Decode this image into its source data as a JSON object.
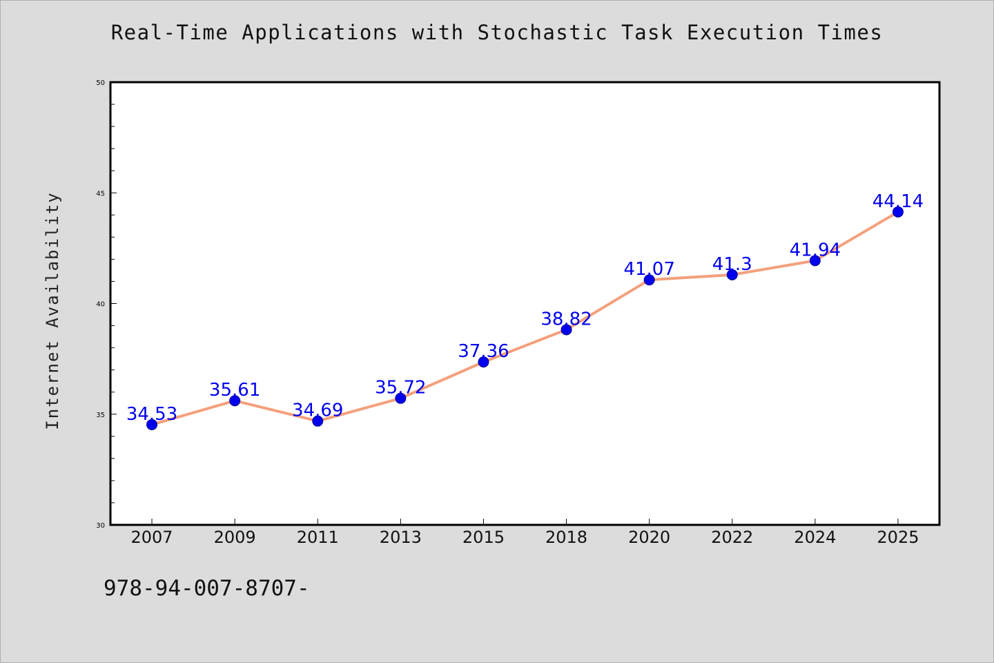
{
  "chart_data": {
    "type": "line",
    "title": "Real-Time Applications with Stochastic Task Execution Times",
    "xlabel": "",
    "ylabel": "Internet Availability",
    "categories": [
      "2007",
      "2009",
      "2011",
      "2013",
      "2015",
      "2018",
      "2020",
      "2022",
      "2024",
      "2025"
    ],
    "series": [
      {
        "values": [
          34.53,
          35.61,
          34.69,
          35.72,
          37.36,
          38.82,
          41.07,
          41.3,
          41.94,
          44.14
        ],
        "labels": [
          "34.53",
          "35.61",
          "34.69",
          "35.72",
          "37.36",
          "38.82",
          "41.07",
          "41.3",
          "41.94",
          "44.14"
        ]
      }
    ],
    "ylim": [
      30,
      50
    ],
    "yticks": [
      30,
      35,
      40,
      45,
      50
    ],
    "ytick_labels": [
      "30",
      "35",
      "40",
      "45",
      "50"
    ],
    "grid": false,
    "colors": {
      "line": "#f4a07c",
      "marker": "#0000ee",
      "data_label": "#0000ee",
      "plot_background": "#ffffff",
      "page_background": "#dcdcdc"
    }
  },
  "footnote": "978-94-007-8707-"
}
